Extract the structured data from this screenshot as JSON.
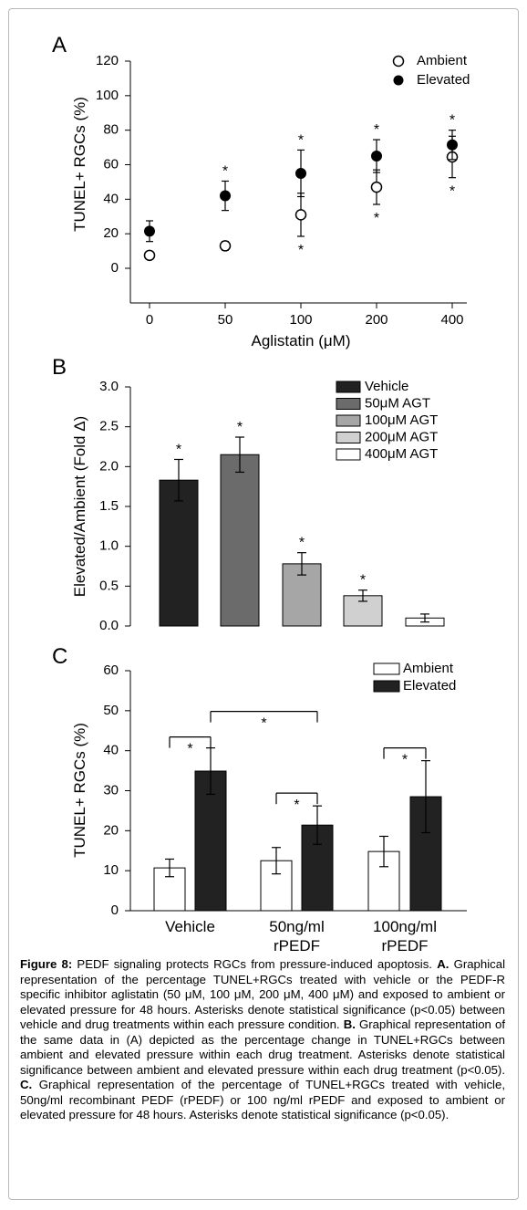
{
  "chart_data": [
    {
      "type": "scatter",
      "panel_label": "A",
      "xlabel": "Aglistatin (μM)",
      "ylabel": "TUNEL+ RGCs (%)",
      "ylim": [
        0,
        120
      ],
      "yticks": [
        0,
        20,
        40,
        60,
        80,
        100,
        120
      ],
      "categories": [
        "0",
        "50",
        "100",
        "200",
        "400"
      ],
      "legend_position": "top-right",
      "series": [
        {
          "name": "Ambient",
          "marker": "open-circle",
          "values": [
            7.5,
            13,
            31,
            47,
            64.5
          ],
          "errors": [
            0,
            2.5,
            12.5,
            10,
            12
          ],
          "significance": [
            "",
            "",
            "*",
            "*",
            "*"
          ]
        },
        {
          "name": "Elevated",
          "marker": "filled-circle",
          "values": [
            21.5,
            42,
            55,
            65,
            71.5
          ],
          "errors": [
            6,
            8.5,
            13.5,
            9.5,
            8.5
          ],
          "significance": [
            "",
            "*",
            "*",
            "*",
            "*"
          ]
        }
      ]
    },
    {
      "type": "bar",
      "panel_label": "B",
      "ylabel": "Elevated/Ambient (Fold Δ)",
      "ylim": [
        0,
        3.0
      ],
      "yticks": [
        "0.0",
        "0.5",
        "1.0",
        "1.5",
        "2.0",
        "2.5",
        "3.0"
      ],
      "legend_position": "top-right",
      "series": [
        {
          "name": "Vehicle",
          "color": "#222222",
          "value": 1.83,
          "error": 0.26,
          "significance": "*"
        },
        {
          "name": "50μM AGT",
          "color": "#6b6b6b",
          "value": 2.15,
          "error": 0.22,
          "significance": "*"
        },
        {
          "name": "100μM AGT",
          "color": "#a6a6a6",
          "value": 0.78,
          "error": 0.14,
          "significance": "*"
        },
        {
          "name": "200μM AGT",
          "color": "#d0d0d0",
          "value": 0.38,
          "error": 0.07,
          "significance": "*"
        },
        {
          "name": "400μM AGT",
          "color": "#ffffff",
          "value": 0.1,
          "error": 0.05,
          "significance": ""
        }
      ]
    },
    {
      "type": "bar",
      "panel_label": "C",
      "ylabel": "TUNEL+ RGCs (%)",
      "ylim": [
        0,
        60
      ],
      "yticks": [
        0,
        10,
        20,
        30,
        40,
        50,
        60
      ],
      "categories": [
        [
          "Vehicle"
        ],
        [
          "50ng/ml",
          "rPEDF"
        ],
        [
          "100ng/ml",
          "rPEDF"
        ]
      ],
      "legend_position": "top-right",
      "series": [
        {
          "name": "Ambient",
          "color": "#ffffff",
          "values": [
            10.7,
            12.5,
            14.8
          ],
          "errors": [
            2.2,
            3.3,
            3.8
          ]
        },
        {
          "name": "Elevated",
          "color": "#222222",
          "values": [
            34.9,
            21.4,
            28.5
          ],
          "errors": [
            5.8,
            4.8,
            9.0
          ]
        }
      ],
      "significance": [
        {
          "from": "Vehicle Ambient",
          "to": "Vehicle Elevated",
          "label": "*"
        },
        {
          "from": "Vehicle Elevated",
          "to": "50ng/ml rPEDF Elevated",
          "label": "*"
        },
        {
          "from": "50ng/ml rPEDF Ambient",
          "to": "50ng/ml rPEDF Elevated",
          "label": "*"
        },
        {
          "from": "100ng/ml rPEDF Ambient",
          "to": "100ng/ml rPEDF Elevated",
          "label": "*"
        }
      ]
    }
  ],
  "caption": {
    "figure_label": "Figure 8:",
    "title": " PEDF signaling protects RGCs from pressure-induced apoptosis.",
    "a_label": "A.",
    "a_text": " Graphical representation of the percentage TUNEL+RGCs treated with vehicle or the PEDF-R specific inhibitor aglistatin (50 μM, 100 μM, 200 μM, 400 μM) and exposed to ambient or elevated pressure for 48 hours. Asterisks denote statistical significance (p<0.05) between vehicle and drug treatments within each pressure condition.",
    "b_label": "B.",
    "b_text": " Graphical representation of the same data in (A) depicted as the percentage change in TUNEL+RGCs between ambient and elevated pressure within each drug treatment. Asterisks denote statistical significance between ambient and elevated pressure within each drug treatment (p<0.05).",
    "c_label": "C.",
    "c_text": " Graphical representation of the percentage of TUNEL+RGCs treated with vehicle, 50ng/ml recombinant PEDF (rPEDF) or 100 ng/ml rPEDF and exposed to ambient or elevated pressure for 48 hours. Asterisks denote statistical significance (p<0.05)."
  }
}
